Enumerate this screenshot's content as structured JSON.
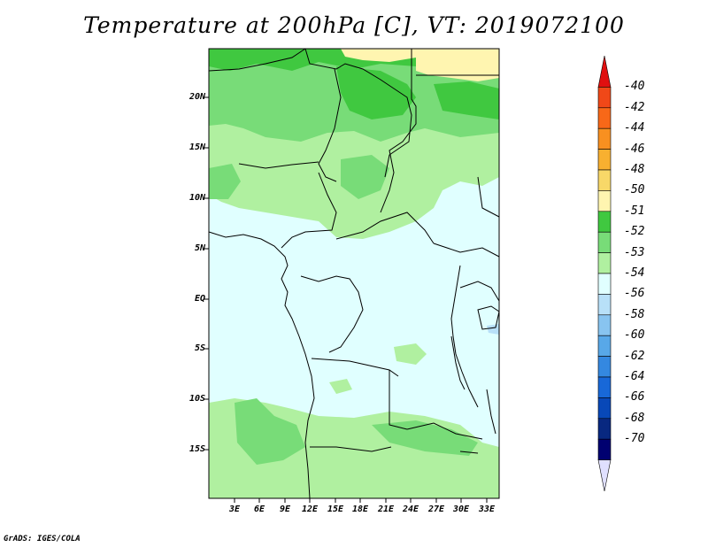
{
  "title": "Temperature at 200hPa [C], VT: 2019072100",
  "credit": "GrADS: IGES/COLA",
  "lat_labels": [
    "20N",
    "15N",
    "10N",
    "5N",
    "EQ",
    "5S",
    "10S",
    "15S"
  ],
  "lon_labels": [
    "3E",
    "6E",
    "9E",
    "12E",
    "15E",
    "18E",
    "21E",
    "24E",
    "27E",
    "30E",
    "33E"
  ],
  "colorbar": {
    "labels": [
      "-40",
      "-42",
      "-44",
      "-46",
      "-48",
      "-50",
      "-51",
      "-52",
      "-53",
      "-54",
      "-56",
      "-58",
      "-60",
      "-62",
      "-64",
      "-66",
      "-68",
      "-70"
    ],
    "colors": [
      "#e01010",
      "#f04818",
      "#f86818",
      "#f89020",
      "#f8b030",
      "#f8d868",
      "#fff5b0",
      "#40c840",
      "#78dc78",
      "#b0f0a0",
      "#e0ffff",
      "#b8e0f8",
      "#88c4f0",
      "#58a8e8",
      "#3488e0",
      "#1868d8",
      "#0848b8",
      "#082880",
      "#000070",
      "#e0e0ff"
    ]
  },
  "legend_colors": {
    "c50": "#fff5b0",
    "c51": "#40c840",
    "c52": "#78dc78",
    "c53": "#b0f0a0",
    "c54": "#e0ffff",
    "c56": "#b8e0f8"
  },
  "map_extent": {
    "lon_min": 0,
    "lon_max": 34.5,
    "lat_min": -19.5,
    "lat_max": 24.5
  }
}
